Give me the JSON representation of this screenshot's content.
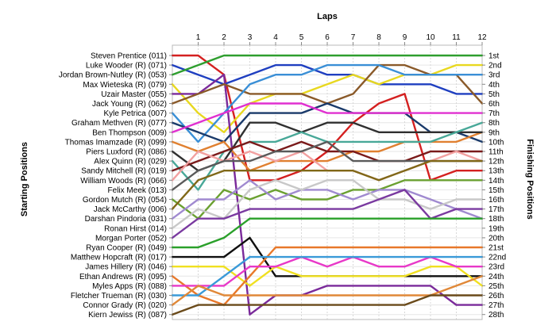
{
  "chart_data": {
    "type": "line",
    "title": "Laps",
    "ylabel_left": "Starting Positions",
    "ylabel_right": "Finishing Positions",
    "x_ticks": [
      "1",
      "2",
      "3",
      "4",
      "5",
      "6",
      "7",
      "8",
      "9",
      "10",
      "11",
      "12"
    ],
    "y_range": [
      1,
      28
    ],
    "start_labels": [
      "Steven Prentice (011)",
      "Luke Wooder (R) (071)",
      "Jordan Brown-Nutley (R) (053)",
      "Max Wieteska (R) (079)",
      "Uzair Master (055)",
      "Jack Young  (R) (062)",
      "Kyle Petrica (007)",
      "Graham Methven (R) (077)",
      "Ben Thompson (009)",
      "Thomas Imamzade (R) (099)",
      "Piers Luxford  (R) (086)",
      "Alex Quinn (R) (029)",
      "Sandy Mitchell (R) (019)",
      "William Woods (R) (066)",
      "Felix Meek (013)",
      "Gordon Mutch (R) (054)",
      "Jack McCarthy (006)",
      "Darshan Pindoria (031)",
      "Ronan Hirst (014)",
      "Morgan Porter (052)",
      "Ryan Cooper (R) (049)",
      "Matthew Hopcraft (R) (017)",
      "James Hillery (R) (046)",
      "Ethan Andrews (R) (095)",
      "Myles Apps  (R) (088)",
      "Fletcher Trueman (R) (030)",
      "Connor Grady (R) (020)",
      "Kiern Jewiss  (R) (087)"
    ],
    "finish_labels": [
      "1st",
      "2nd",
      "3rd",
      "4th",
      "5th",
      "6th",
      "7th",
      "8th",
      "9th",
      "10th",
      "11th",
      "12th",
      "13th",
      "14th",
      "15th",
      "16th",
      "17th",
      "18th",
      "19th",
      "20th",
      "21st",
      "22nd",
      "23rd",
      "24th",
      "25th",
      "26th",
      "27th",
      "28th"
    ],
    "series": [
      {
        "color": "#d42020",
        "values": [
          1,
          1,
          3,
          14,
          14,
          13,
          11,
          8,
          6,
          5,
          14,
          13,
          13
        ]
      },
      {
        "color": "#1f3fc0",
        "values": [
          2,
          3,
          4,
          3,
          2,
          2,
          3,
          3,
          4,
          4,
          4,
          5,
          5
        ]
      },
      {
        "color": "#2e9e2e",
        "values": [
          3,
          2,
          1,
          1,
          1,
          1,
          1,
          1,
          1,
          1,
          1,
          1,
          1
        ]
      },
      {
        "color": "#e8d820",
        "values": [
          4,
          7,
          9,
          6,
          5,
          5,
          4,
          3,
          4,
          3,
          3,
          2,
          2
        ]
      },
      {
        "color": "#7a2a9a",
        "values": [
          5,
          5,
          3,
          28,
          26,
          26,
          25,
          25,
          25,
          25,
          25,
          27,
          27
        ]
      },
      {
        "color": "#8a5a2a",
        "values": [
          6,
          5,
          4,
          5,
          5,
          5,
          6,
          5,
          2,
          2,
          3,
          3,
          6
        ]
      },
      {
        "color": "#3a8fd6",
        "values": [
          7,
          10,
          7,
          4,
          3,
          3,
          2,
          2,
          2,
          3,
          3,
          3,
          3
        ]
      },
      {
        "color": "#1a3a6a",
        "values": [
          8,
          9,
          10,
          7,
          7,
          7,
          6,
          7,
          7,
          7,
          9,
          9,
          10
        ]
      },
      {
        "color": "#e030d0",
        "values": [
          9,
          8,
          7,
          6,
          6,
          6,
          7,
          7,
          7,
          7,
          7,
          7,
          7
        ]
      },
      {
        "color": "#e08030",
        "values": [
          10,
          11,
          10,
          13,
          12,
          12,
          12,
          11,
          11,
          10,
          10,
          10,
          9
        ]
      },
      {
        "color": "#303030",
        "values": [
          11,
          13,
          12,
          8,
          8,
          9,
          8,
          8,
          9,
          9,
          9,
          9,
          9
        ]
      },
      {
        "color": "#48a898",
        "values": [
          12,
          15,
          11,
          10,
          10,
          9,
          10,
          10,
          10,
          10,
          10,
          9,
          8
        ]
      },
      {
        "color": "#7a1a1a",
        "values": [
          13,
          12,
          11,
          10,
          11,
          10,
          11,
          11,
          12,
          12,
          11,
          11,
          11
        ]
      },
      {
        "color": "#f2a0a0",
        "values": [
          14,
          11,
          12,
          11,
          12,
          11,
          13,
          13,
          14,
          13,
          12,
          11,
          12
        ]
      },
      {
        "color": "#5a5a5a",
        "values": [
          15,
          13,
          12,
          12,
          11,
          11,
          10,
          12,
          12,
          12,
          12,
          12,
          12
        ]
      },
      {
        "color": "#6aa030",
        "values": [
          16,
          18,
          15,
          16,
          15,
          16,
          16,
          15,
          15,
          14,
          14,
          14,
          14
        ]
      },
      {
        "color": "#806818",
        "values": [
          17,
          14,
          13,
          13,
          13,
          13,
          13,
          13,
          14,
          13,
          12,
          12,
          12
        ]
      },
      {
        "color": "#a08ad0",
        "values": [
          18,
          16,
          16,
          14,
          16,
          15,
          15,
          16,
          15,
          15,
          16,
          17,
          18
        ]
      },
      {
        "color": "#c8c8c8",
        "values": [
          19,
          17,
          18,
          15,
          14,
          15,
          14,
          14,
          16,
          16,
          17,
          16,
          16
        ]
      },
      {
        "color": "#7a3aa0",
        "values": [
          20,
          18,
          18,
          17,
          17,
          17,
          17,
          17,
          16,
          15,
          18,
          17,
          17
        ]
      },
      {
        "color": "#2aa02a",
        "values": [
          21,
          21,
          20,
          18,
          18,
          18,
          18,
          18,
          18,
          18,
          18,
          18,
          18
        ]
      },
      {
        "color": "#101010",
        "values": [
          22,
          22,
          22,
          20,
          24,
          24,
          24,
          24,
          24,
          24,
          24,
          24,
          24
        ]
      },
      {
        "color": "#f0e020",
        "values": [
          23,
          23,
          23,
          25,
          23,
          24,
          24,
          24,
          24,
          24,
          23,
          23,
          25
        ]
      },
      {
        "color": "#e8782a",
        "values": [
          24,
          26,
          27,
          24,
          21,
          21,
          21,
          21,
          21,
          21,
          21,
          21,
          21
        ]
      },
      {
        "color": "#e838c8",
        "values": [
          25,
          25,
          25,
          23,
          23,
          22,
          23,
          22,
          23,
          23,
          22,
          23,
          23
        ]
      },
      {
        "color": "#3a9ad8",
        "values": [
          26,
          26,
          24,
          22,
          22,
          22,
          22,
          22,
          22,
          22,
          22,
          22,
          22
        ]
      },
      {
        "color": "#e08838",
        "values": [
          27,
          25,
          26,
          26,
          26,
          26,
          26,
          26,
          26,
          26,
          26,
          25,
          24
        ]
      },
      {
        "color": "#6a4a1a",
        "values": [
          28,
          27,
          27,
          27,
          27,
          27,
          27,
          27,
          27,
          27,
          26,
          26,
          26
        ]
      }
    ]
  }
}
